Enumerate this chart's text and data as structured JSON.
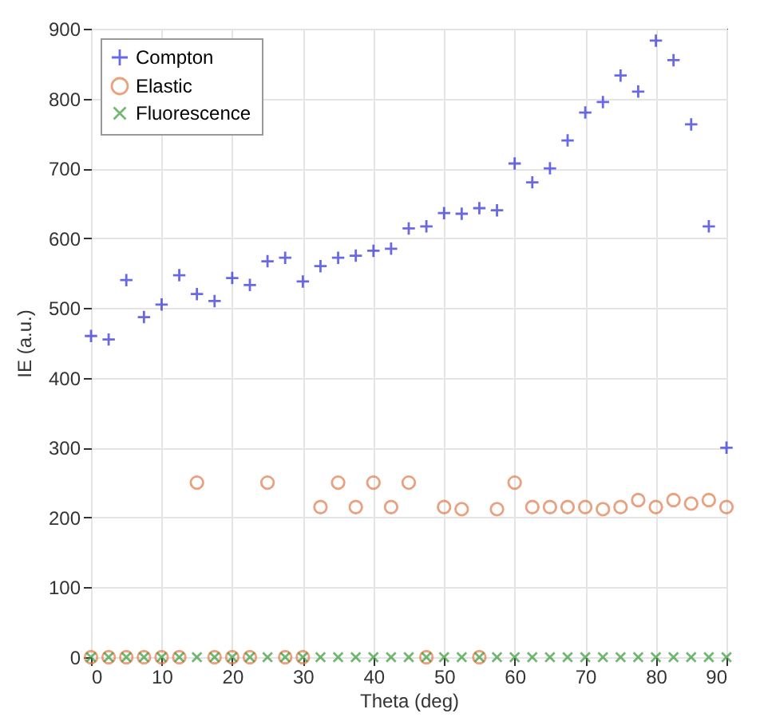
{
  "chart_data": {
    "type": "scatter",
    "xlabel": "Theta (deg)",
    "ylabel": "IE (a.u.)",
    "x": [
      0,
      2.5,
      5,
      7.5,
      10,
      12.5,
      15,
      17.5,
      20,
      22.5,
      25,
      27.5,
      30,
      32.5,
      35,
      37.5,
      40,
      42.5,
      45,
      47.5,
      50,
      52.5,
      55,
      57.5,
      60,
      62.5,
      65,
      67.5,
      70,
      72.5,
      75,
      77.5,
      80,
      82.5,
      85,
      87.5,
      90
    ],
    "series": [
      {
        "name": "Compton",
        "color": "#2b2bd9",
        "marker": "plus",
        "values": [
          460,
          455,
          540,
          487,
          505,
          547,
          520,
          510,
          543,
          533,
          567,
          572,
          538,
          560,
          572,
          575,
          582,
          585,
          614,
          617,
          636,
          635,
          643,
          640,
          707,
          680,
          700,
          740,
          780,
          795,
          833,
          810,
          883,
          855,
          763,
          617,
          300
        ]
      },
      {
        "name": "Elastic",
        "color": "#e07a4a",
        "marker": "circle",
        "values": [
          0,
          0,
          0,
          0,
          0,
          0,
          250,
          0,
          0,
          0,
          250,
          0,
          0,
          215,
          250,
          215,
          250,
          215,
          250,
          0,
          215,
          212,
          0,
          212,
          250,
          215,
          215,
          215,
          215,
          212,
          215,
          225,
          215,
          225,
          220,
          225,
          215
        ]
      },
      {
        "name": "Fluorescence",
        "color": "#3a9a3a",
        "marker": "cross",
        "values": [
          0,
          0,
          0,
          0,
          0,
          0,
          0,
          0,
          0,
          0,
          0,
          0,
          0,
          0,
          0,
          0,
          0,
          0,
          0,
          0,
          0,
          0,
          0,
          0,
          0,
          0,
          0,
          0,
          0,
          0,
          0,
          0,
          0,
          0,
          0,
          0,
          0
        ]
      }
    ],
    "xlim": [
      0,
      90
    ],
    "xticks": [
      0,
      10,
      20,
      30,
      40,
      50,
      60,
      70,
      80,
      90
    ],
    "ylim": [
      0,
      900
    ],
    "yticks": [
      0,
      100,
      200,
      300,
      400,
      500,
      600,
      700,
      800,
      900
    ],
    "grid": true,
    "legend": "top left"
  }
}
